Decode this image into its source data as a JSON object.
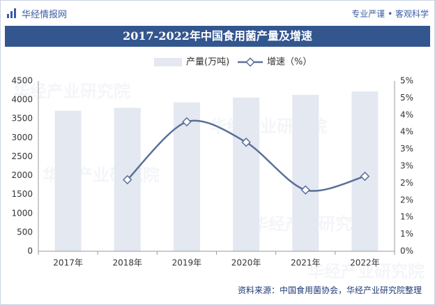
{
  "header": {
    "brand": "华经情报网",
    "tagline": "专业严谨 • 客观科学"
  },
  "title": "2017-2022年中国食用菌产量及增速",
  "watermark": "华经产业研究院",
  "source": "资料来源：中国食用菌协会，华经产业研究院整理",
  "colors": {
    "bar": "#e3e8f1",
    "line": "#5b6f98",
    "title_band": "#34568f",
    "brand": "#3b5ba5"
  },
  "chart_data": {
    "type": "bar+line",
    "categories": [
      "2017年",
      "2018年",
      "2019年",
      "2020年",
      "2021年",
      "2022年"
    ],
    "series": [
      {
        "name": "产量(万吨)",
        "type": "bar",
        "axis": "left",
        "values": [
          3712,
          3790,
          3934,
          4061,
          4134,
          4223
        ]
      },
      {
        "name": "增速（%）",
        "type": "line",
        "axis": "right",
        "values": [
          null,
          2.1,
          3.8,
          3.2,
          1.8,
          2.2
        ]
      }
    ],
    "y_left": {
      "min": 0,
      "max": 4500,
      "step": 500,
      "ticks": [
        "0",
        "500",
        "1000",
        "1500",
        "2000",
        "2500",
        "3000",
        "3500",
        "4000",
        "4500"
      ]
    },
    "y_right": {
      "min": 0,
      "max": 5,
      "step": 0.5,
      "ticks": [
        "0%",
        "1%",
        "1%",
        "2%",
        "2%",
        "3%",
        "3%",
        "4%",
        "4%",
        "5%",
        "5%"
      ]
    },
    "legend_position": "top-center",
    "grid": false
  }
}
